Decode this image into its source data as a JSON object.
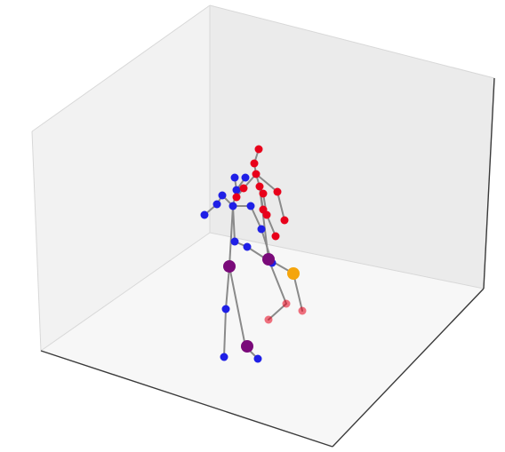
{
  "colors": {
    "background": "#ffffff",
    "pane_left": "#f2f2f2",
    "pane_back": "#ebebeb",
    "pane_floor": "#f7f7f7",
    "axis_line": "#3a3a3a",
    "bone": "#8a8a8a",
    "series_a": "#e8001a",
    "series_b": "#1f1fe6",
    "overlap": "#7a0a7a",
    "highlight": "#f5a50c"
  },
  "scene": {
    "type": "3d-pose-skeletons",
    "series": [
      {
        "key": "a",
        "color_key": "series_a",
        "joint_count": 17
      },
      {
        "key": "b",
        "color_key": "series_b",
        "joint_count": 17
      }
    ],
    "grid": false,
    "ticks": false
  }
}
